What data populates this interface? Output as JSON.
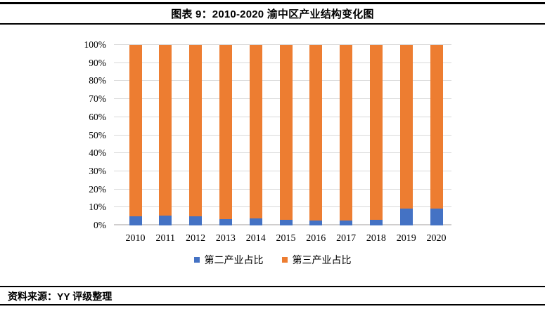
{
  "header": {
    "title": "图表 9：2010-2020 渝中区产业结构变化图"
  },
  "footer": {
    "source_label": "资料来源：YY 评级整理"
  },
  "colors": {
    "secondary_industry": "#4472C4",
    "tertiary_industry": "#ED7D31",
    "gridline": "#D9D9D9",
    "axis_line": "#D0CECE",
    "rule": "#000000"
  },
  "chart_data": {
    "type": "bar",
    "stacked": true,
    "title": "图表 9：2010-2020 渝中区产业结构变化图",
    "categories": [
      "2010",
      "2011",
      "2012",
      "2013",
      "2014",
      "2015",
      "2016",
      "2017",
      "2018",
      "2019",
      "2020"
    ],
    "series": [
      {
        "name": "第二产业占比",
        "color": "#4472C4",
        "values": [
          5.0,
          5.5,
          5.1,
          3.6,
          3.7,
          3.1,
          2.9,
          2.8,
          3.2,
          9.2,
          9.4
        ]
      },
      {
        "name": "第三产业占比",
        "color": "#ED7D31",
        "values": [
          95.0,
          94.5,
          94.9,
          96.4,
          96.3,
          96.9,
          97.1,
          97.2,
          96.8,
          90.8,
          90.6
        ]
      }
    ],
    "xlabel": "",
    "ylabel": "",
    "ylim": [
      0,
      100
    ],
    "yticks": [
      0,
      10,
      20,
      30,
      40,
      50,
      60,
      70,
      80,
      90,
      100
    ],
    "ytick_labels": [
      "0%",
      "10%",
      "20%",
      "30%",
      "40%",
      "50%",
      "60%",
      "70%",
      "80%",
      "90%",
      "100%"
    ],
    "grid": true,
    "legend_position": "bottom"
  }
}
